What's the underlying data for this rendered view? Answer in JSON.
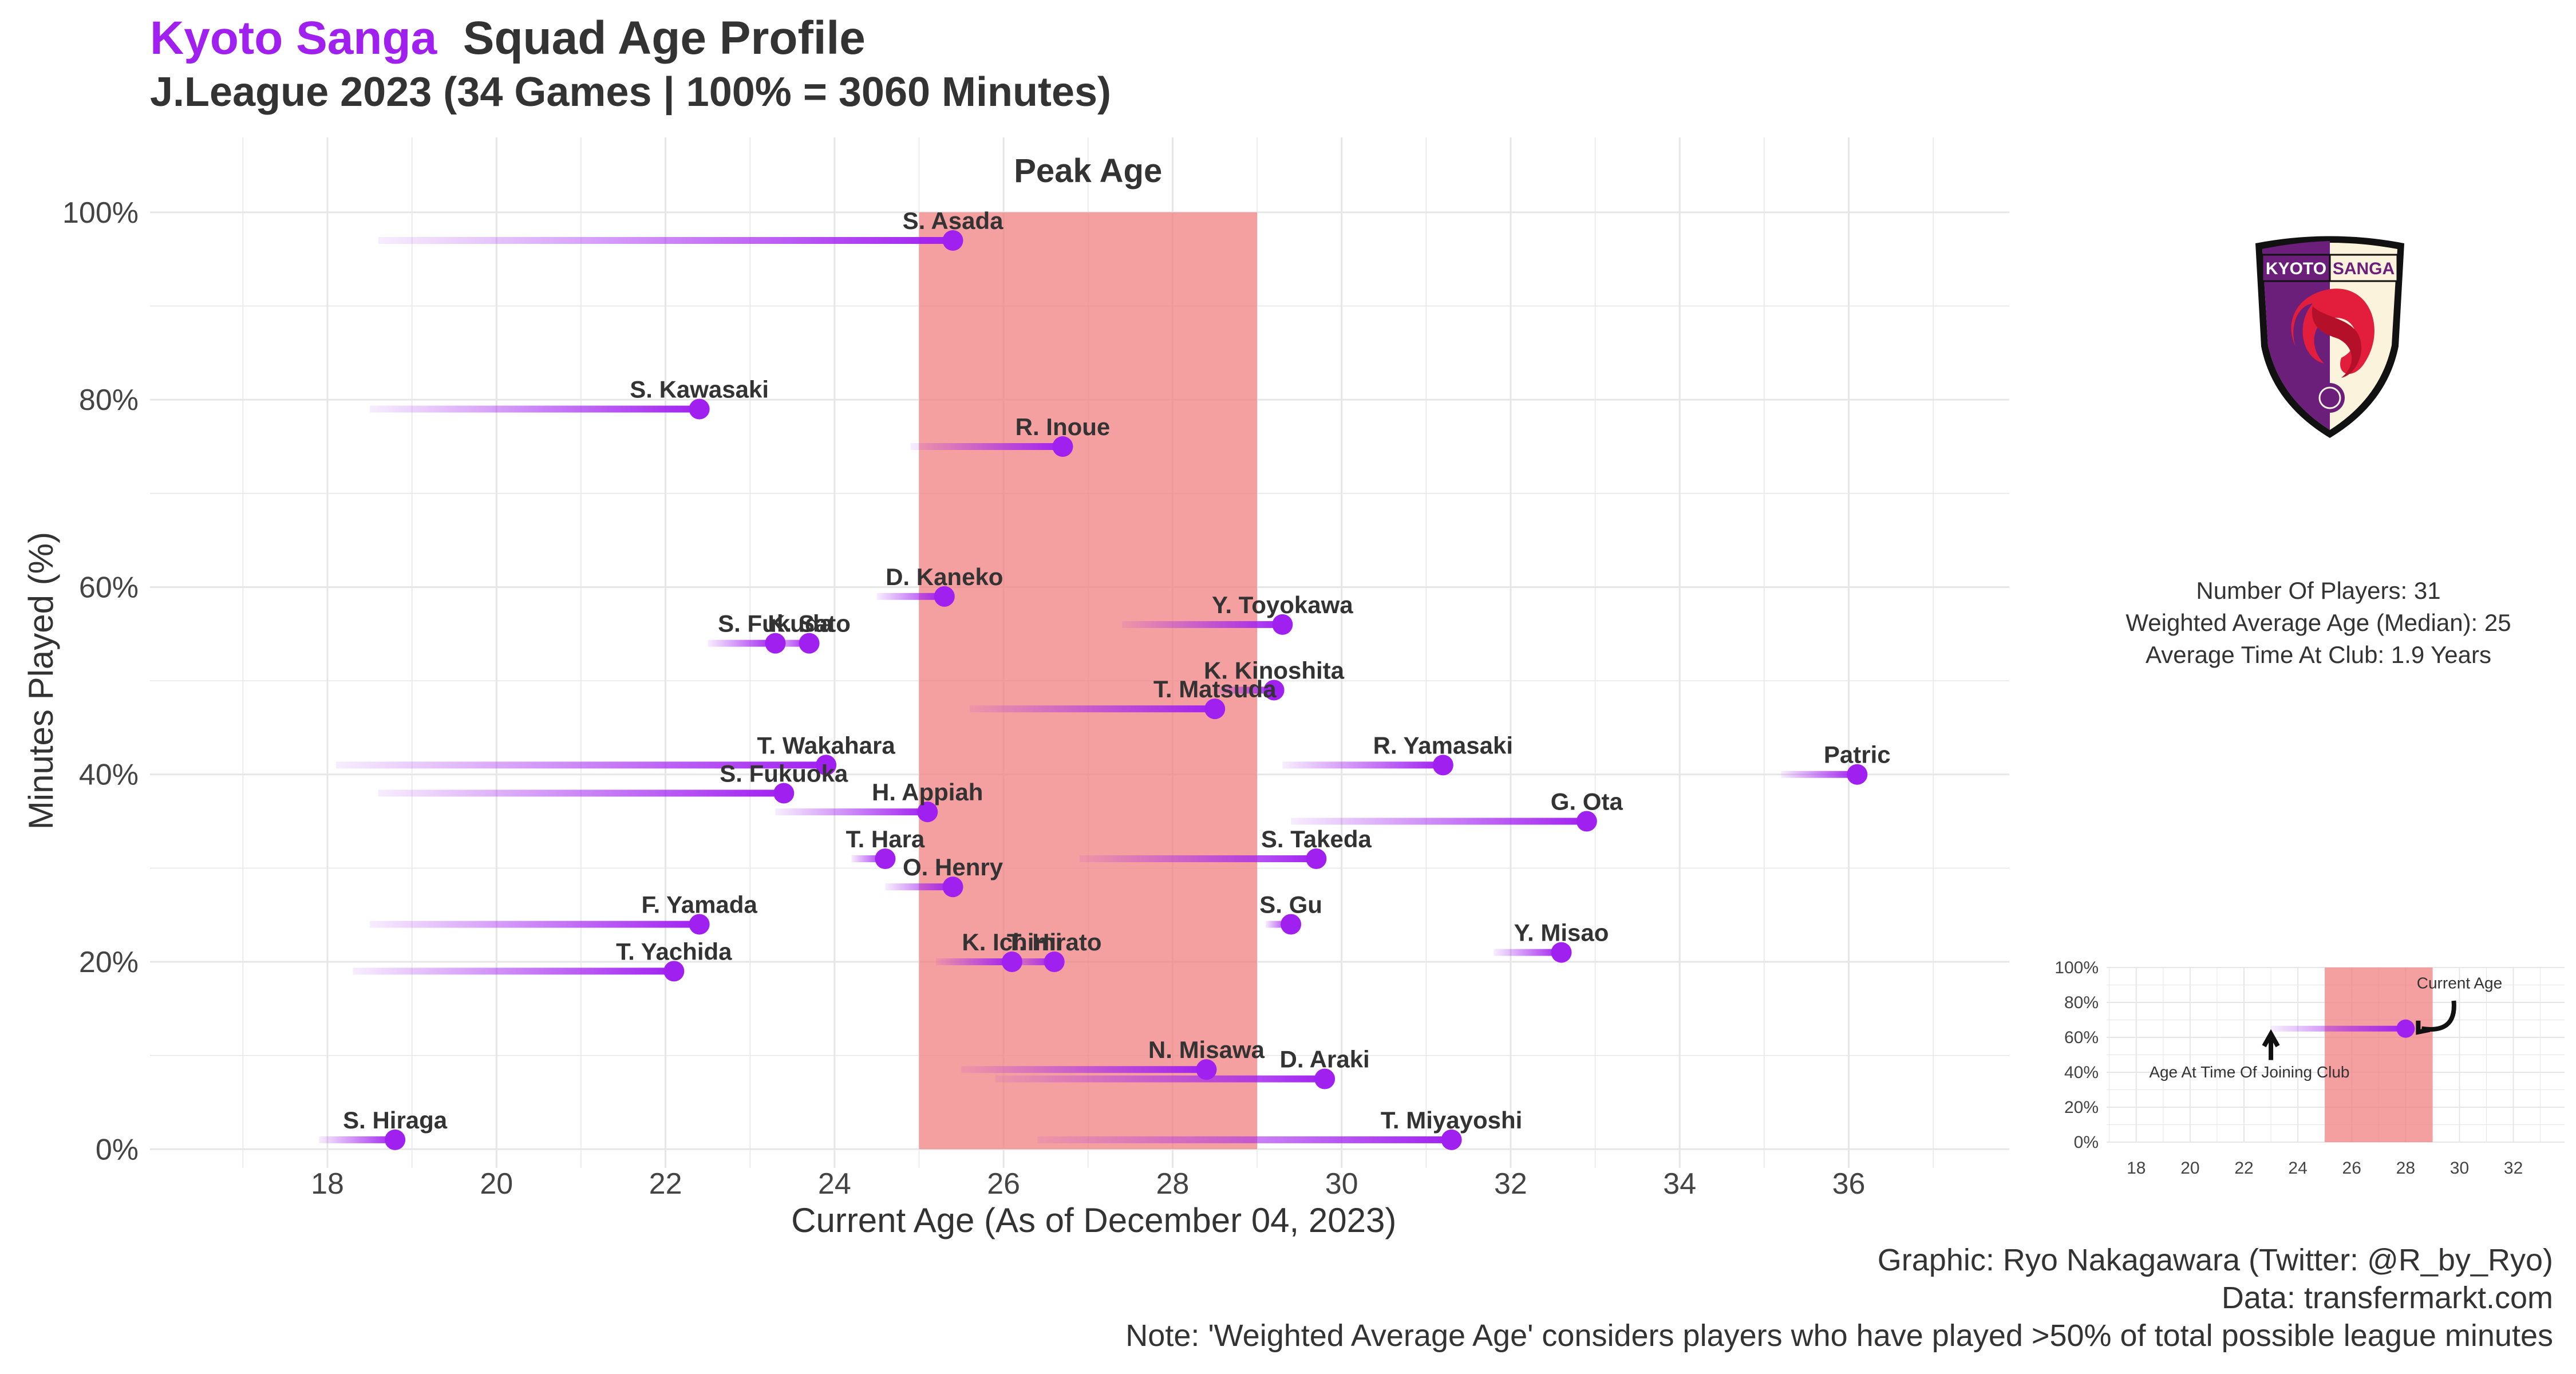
{
  "header": {
    "team": "Kyoto Sanga",
    "title": "Squad Age Profile",
    "subtitle": "J.League 2023 (34 Games | 100% = 3060 Minutes)"
  },
  "colors": {
    "accent": "#a020f0",
    "peak_band": "#f08080",
    "text": "#333333",
    "grid": "#e6e6e6"
  },
  "chart_data": {
    "type": "scatter",
    "xlabel": "Current Age (As of December 04, 2023)",
    "ylabel": "Minutes Played (%)",
    "xlim": [
      15.9,
      37.9
    ],
    "ylim": [
      -2,
      108
    ],
    "x_ticks": [
      "18",
      "20",
      "22",
      "24",
      "26",
      "28",
      "30",
      "32",
      "34",
      "36"
    ],
    "y_ticks": [
      "0%",
      "20%",
      "40%",
      "60%",
      "80%",
      "100%"
    ],
    "peak_age": {
      "label": "Peak Age",
      "from": 25,
      "to": 29
    },
    "players": [
      {
        "name": "S. Asada",
        "age": 25.4,
        "joined_age": 18.6,
        "minutes_pct": 97
      },
      {
        "name": "S. Kawasaki",
        "age": 22.4,
        "joined_age": 18.5,
        "minutes_pct": 79
      },
      {
        "name": "R. Inoue",
        "age": 26.7,
        "joined_age": 24.9,
        "minutes_pct": 75
      },
      {
        "name": "D. Kaneko",
        "age": 25.3,
        "joined_age": 24.5,
        "minutes_pct": 59
      },
      {
        "name": "Y. Toyokawa",
        "age": 29.3,
        "joined_age": 27.4,
        "minutes_pct": 56
      },
      {
        "name": "K. Sato",
        "age": 23.7,
        "joined_age": 23.2,
        "minutes_pct": 54
      },
      {
        "name": "S. Fukuda",
        "age": 23.3,
        "joined_age": 22.5,
        "minutes_pct": 54
      },
      {
        "name": "K. Kinoshita",
        "age": 29.2,
        "joined_age": 28.5,
        "minutes_pct": 49
      },
      {
        "name": "T. Matsuda",
        "age": 28.5,
        "joined_age": 25.6,
        "minutes_pct": 47
      },
      {
        "name": "T. Wakahara",
        "age": 23.9,
        "joined_age": 18.1,
        "minutes_pct": 41
      },
      {
        "name": "R. Yamasaki",
        "age": 31.2,
        "joined_age": 29.3,
        "minutes_pct": 41
      },
      {
        "name": "Patric",
        "age": 36.1,
        "joined_age": 35.2,
        "minutes_pct": 40
      },
      {
        "name": "S. Fukuoka",
        "age": 23.4,
        "joined_age": 18.6,
        "minutes_pct": 38
      },
      {
        "name": "H. Appiah",
        "age": 25.1,
        "joined_age": 23.3,
        "minutes_pct": 36
      },
      {
        "name": "G. Ota",
        "age": 32.9,
        "joined_age": 29.4,
        "minutes_pct": 35
      },
      {
        "name": "T. Hara",
        "age": 24.6,
        "joined_age": 24.2,
        "minutes_pct": 31
      },
      {
        "name": "S. Takeda",
        "age": 29.7,
        "joined_age": 26.9,
        "minutes_pct": 31
      },
      {
        "name": "O. Henry",
        "age": 25.4,
        "joined_age": 24.6,
        "minutes_pct": 28
      },
      {
        "name": "S. Gu",
        "age": 29.4,
        "joined_age": 29.1,
        "minutes_pct": 24
      },
      {
        "name": "F. Yamada",
        "age": 22.4,
        "joined_age": 18.5,
        "minutes_pct": 24
      },
      {
        "name": "Y. Misao",
        "age": 32.6,
        "joined_age": 31.8,
        "minutes_pct": 21
      },
      {
        "name": "T. Hirato",
        "age": 26.6,
        "joined_age": 26.0,
        "minutes_pct": 20
      },
      {
        "name": "K. Ichimi",
        "age": 26.1,
        "joined_age": 25.2,
        "minutes_pct": 20
      },
      {
        "name": "T. Yachida",
        "age": 22.1,
        "joined_age": 18.3,
        "minutes_pct": 19
      },
      {
        "name": "N. Misawa",
        "age": 28.4,
        "joined_age": 25.5,
        "minutes_pct": 8.5
      },
      {
        "name": "D. Araki",
        "age": 29.8,
        "joined_age": 25.9,
        "minutes_pct": 7.5
      },
      {
        "name": "S. Hiraga",
        "age": 18.8,
        "joined_age": 17.9,
        "minutes_pct": 1
      },
      {
        "name": "T. Miyayoshi",
        "age": 31.3,
        "joined_age": 26.4,
        "minutes_pct": 1
      }
    ]
  },
  "stats": {
    "players": "Number Of Players: 31",
    "weighted_age": "Weighted Average Age (Median): 25",
    "time_at_club": "Average Time At Club: 1.9 Years"
  },
  "crest": {
    "text_left": "KYOTO",
    "text_right": "SANGA",
    "colors": {
      "purple": "#6b1f7a",
      "red": "#e31e3c",
      "cream": "#fbf3dc"
    }
  },
  "inset_legend": {
    "x_ticks": [
      "18",
      "20",
      "22",
      "24",
      "26",
      "28",
      "30",
      "32"
    ],
    "y_ticks": [
      "0%",
      "20%",
      "40%",
      "60%",
      "80%",
      "100%"
    ],
    "example": {
      "age": 28,
      "joined_age": 23,
      "minutes_pct": 65
    },
    "peak_age": {
      "from": 25,
      "to": 29
    },
    "current_age_label": "Current Age",
    "joined_label": "Age At Time Of Joining Club"
  },
  "captions": {
    "graphic": "Graphic: Ryo Nakagawara (Twitter: @R_by_Ryo)",
    "data": "Data: transfermarkt.com",
    "note": "Note: 'Weighted Average Age' considers players who have played >50% of total possible league minutes"
  }
}
